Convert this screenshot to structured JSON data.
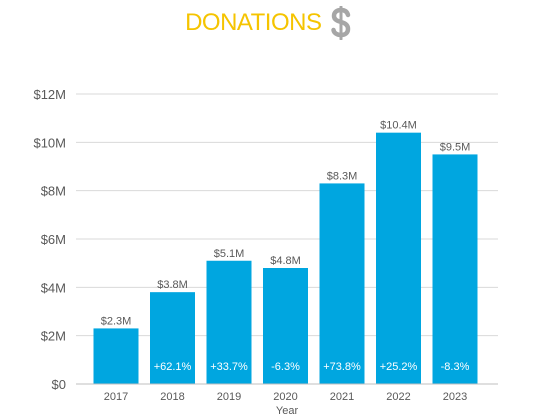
{
  "title": "DONATIONS",
  "title_icon": "dollar-sign-icon",
  "colors": {
    "title": "#f5c400",
    "icon": "#a6a6a6",
    "bar": "#00a6e0",
    "grid": "#d9d9d9",
    "axis_text": "#595959",
    "bar_inner_text": "#ffffff"
  },
  "chart_data": {
    "type": "bar",
    "categories": [
      "2017",
      "2018",
      "2019",
      "2020",
      "2021",
      "2022",
      "2023"
    ],
    "values": [
      2.3,
      3.8,
      5.1,
      4.8,
      8.3,
      10.4,
      9.5
    ],
    "value_labels": [
      "$2.3M",
      "$3.8M",
      "$5.1M",
      "$4.8M",
      "$8.3M",
      "$10.4M",
      "$9.5M"
    ],
    "change_labels": [
      "",
      "+62.1%",
      "+33.7%",
      "-6.3%",
      "+73.8%",
      "+25.2%",
      "-8.3%"
    ],
    "yticks": [
      0,
      2,
      4,
      6,
      8,
      10,
      12
    ],
    "ytick_labels": [
      "$0",
      "$2M",
      "$4M",
      "$6M",
      "$8M",
      "$10M",
      "$12M"
    ],
    "ylim": [
      0,
      12
    ],
    "xlabel": "Year",
    "ylabel": "",
    "grid": true,
    "legend": "none"
  }
}
